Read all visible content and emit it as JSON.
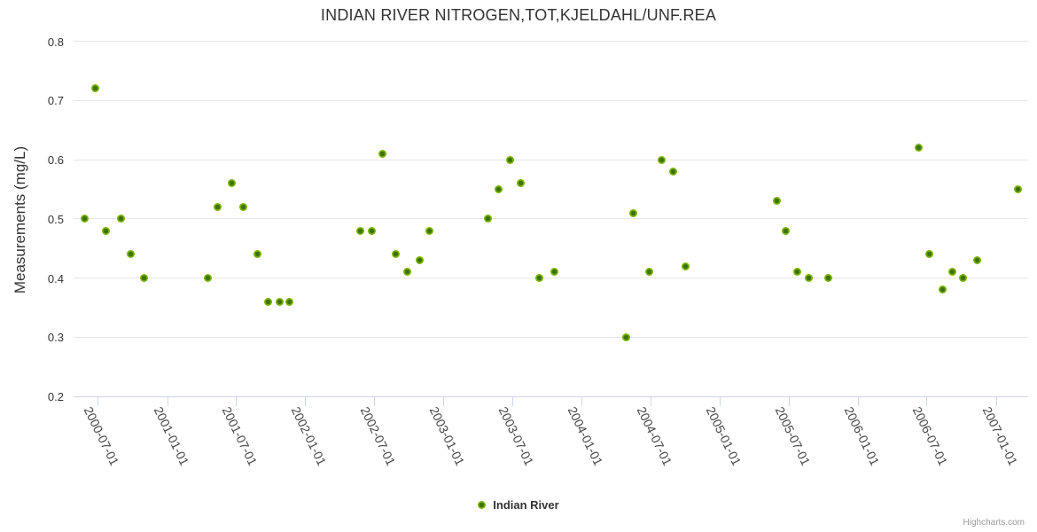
{
  "title": "INDIAN RIVER NITROGEN,TOT,KJELDAHL/UNF.REA",
  "credits": "Highcharts.com",
  "legend": {
    "label": "Indian River"
  },
  "colors": {
    "point_outer": "#7cb502",
    "point_inner": "#3c7200",
    "grid": "#e6e6e6",
    "axis_line": "#ccd6eb",
    "title_text": "#333333",
    "label_text": "#444444",
    "credits_text": "#9a9a9a"
  },
  "chart_data": {
    "type": "scatter",
    "title": "INDIAN RIVER NITROGEN,TOT,KJELDAHL/UNF.REA",
    "xlabel": "",
    "ylabel": "Measurements (mg/L)",
    "ylim": [
      0.2,
      0.8
    ],
    "y_ticks": [
      0.8,
      0.7,
      0.6,
      0.5,
      0.4,
      0.3,
      0.2
    ],
    "x_ticks": [
      "2000-07-01",
      "2001-01-01",
      "2001-07-01",
      "2002-01-01",
      "2002-07-01",
      "2003-01-01",
      "2003-07-01",
      "2004-01-01",
      "2004-07-01",
      "2005-01-01",
      "2005-07-01",
      "2006-01-01",
      "2006-07-01",
      "2007-01-01"
    ],
    "grid": true,
    "legend_position": "bottom-center",
    "series": [
      {
        "name": "Indian River",
        "color": "#7cb502",
        "points": [
          {
            "date": "2000-05-28",
            "value": 0.5
          },
          {
            "date": "2000-06-25",
            "value": 0.72
          },
          {
            "date": "2000-07-24",
            "value": 0.48
          },
          {
            "date": "2000-08-31",
            "value": 0.5
          },
          {
            "date": "2000-09-27",
            "value": 0.44
          },
          {
            "date": "2000-10-31",
            "value": 0.4
          },
          {
            "date": "2001-04-18",
            "value": 0.4
          },
          {
            "date": "2001-05-14",
            "value": 0.52
          },
          {
            "date": "2001-06-20",
            "value": 0.56
          },
          {
            "date": "2001-07-21",
            "value": 0.52
          },
          {
            "date": "2001-08-28",
            "value": 0.44
          },
          {
            "date": "2001-09-24",
            "value": 0.36
          },
          {
            "date": "2001-10-26",
            "value": 0.36
          },
          {
            "date": "2001-11-21",
            "value": 0.36
          },
          {
            "date": "2002-05-27",
            "value": 0.48
          },
          {
            "date": "2002-06-25",
            "value": 0.48
          },
          {
            "date": "2002-07-24",
            "value": 0.61
          },
          {
            "date": "2002-08-28",
            "value": 0.44
          },
          {
            "date": "2002-09-27",
            "value": 0.41
          },
          {
            "date": "2002-10-31",
            "value": 0.43
          },
          {
            "date": "2002-11-26",
            "value": 0.48
          },
          {
            "date": "2003-04-29",
            "value": 0.5
          },
          {
            "date": "2003-05-27",
            "value": 0.55
          },
          {
            "date": "2003-06-27",
            "value": 0.6
          },
          {
            "date": "2003-07-25",
            "value": 0.56
          },
          {
            "date": "2003-09-11",
            "value": 0.4
          },
          {
            "date": "2003-10-22",
            "value": 0.41
          },
          {
            "date": "2004-04-27",
            "value": 0.3
          },
          {
            "date": "2004-05-17",
            "value": 0.51
          },
          {
            "date": "2004-06-29",
            "value": 0.41
          },
          {
            "date": "2004-07-30",
            "value": 0.6
          },
          {
            "date": "2004-08-31",
            "value": 0.58
          },
          {
            "date": "2004-10-03",
            "value": 0.42
          },
          {
            "date": "2005-06-01",
            "value": 0.53
          },
          {
            "date": "2005-06-23",
            "value": 0.48
          },
          {
            "date": "2005-07-24",
            "value": 0.41
          },
          {
            "date": "2005-08-24",
            "value": 0.4
          },
          {
            "date": "2005-10-14",
            "value": 0.4
          },
          {
            "date": "2006-06-09",
            "value": 0.62
          },
          {
            "date": "2006-07-07",
            "value": 0.44
          },
          {
            "date": "2006-08-12",
            "value": 0.38
          },
          {
            "date": "2006-09-07",
            "value": 0.41
          },
          {
            "date": "2006-10-05",
            "value": 0.4
          },
          {
            "date": "2006-11-11",
            "value": 0.43
          },
          {
            "date": "2007-02-28",
            "value": 0.55
          }
        ]
      }
    ]
  }
}
